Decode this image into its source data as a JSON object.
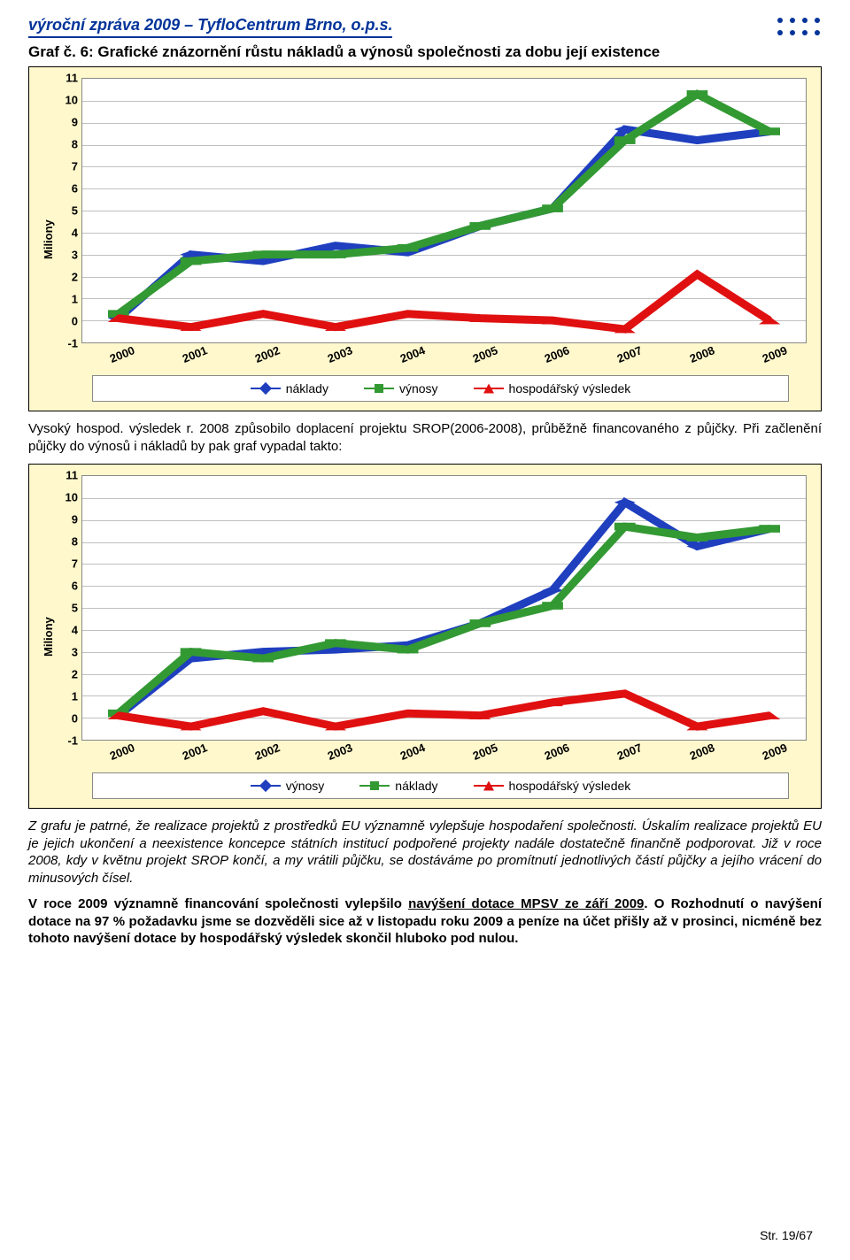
{
  "header": {
    "title": "výroční zpráva 2009 – TyfloCentrum Brno, o.p.s.",
    "dot_color": "#003399"
  },
  "chart1": {
    "title": "Graf č. 6: Grafické znázornění růstu nákladů a výnosů společnosti za dobu její existence",
    "type": "line",
    "background_color": "#fff8cc",
    "plot_bg": "#ffffff",
    "grid_color": "#c0c0c0",
    "border_color": "#888888",
    "ylabel": "Miliony",
    "label_fontsize": 13,
    "xtick_fontsize": 13,
    "xtick_rotation": -22,
    "ylim": [
      -1,
      11
    ],
    "ytick_step": 1,
    "categories": [
      "2000",
      "2001",
      "2002",
      "2003",
      "2004",
      "2005",
      "2006",
      "2007",
      "2008",
      "2009"
    ],
    "series": [
      {
        "name": "náklady",
        "color": "#1f3fbf",
        "marker": "diamond",
        "line_width": 3,
        "values": [
          0.1,
          3.0,
          2.7,
          3.4,
          3.1,
          4.3,
          5.1,
          8.7,
          8.2,
          8.6
        ]
      },
      {
        "name": "výnosy",
        "color": "#339933",
        "marker": "square",
        "line_width": 3,
        "values": [
          0.3,
          2.7,
          3.0,
          3.0,
          3.3,
          4.3,
          5.1,
          8.2,
          10.3,
          8.6
        ]
      },
      {
        "name": "hospodářský výsledek",
        "color": "#e01010",
        "marker": "triangle",
        "line_width": 3,
        "values": [
          0.1,
          -0.3,
          0.3,
          -0.3,
          0.3,
          0.1,
          0.0,
          -0.4,
          2.1,
          0.0
        ]
      }
    ],
    "legend_position": "bottom"
  },
  "para1": "Vysoký hospod. výsledek r. 2008 způsobilo doplacení projektu SROP(2006-2008), průběžně financovaného z půjčky. Při začlenění půjčky do výnosů i nákladů by pak graf vypadal takto:",
  "chart2": {
    "type": "line",
    "background_color": "#fff8cc",
    "plot_bg": "#ffffff",
    "grid_color": "#c0c0c0",
    "border_color": "#888888",
    "ylabel": "Miliony",
    "label_fontsize": 13,
    "xtick_fontsize": 13,
    "xtick_rotation": -22,
    "ylim": [
      -1,
      11
    ],
    "ytick_step": 1,
    "categories": [
      "2000",
      "2001",
      "2002",
      "2003",
      "2004",
      "2005",
      "2006",
      "2007",
      "2008",
      "2009"
    ],
    "series": [
      {
        "name": "výnosy",
        "color": "#1f3fbf",
        "marker": "diamond",
        "line_width": 3,
        "values": [
          0.1,
          2.7,
          3.0,
          3.1,
          3.3,
          4.3,
          5.8,
          9.8,
          7.8,
          8.6
        ]
      },
      {
        "name": "náklady",
        "color": "#339933",
        "marker": "square",
        "line_width": 3,
        "values": [
          0.2,
          3.0,
          2.7,
          3.4,
          3.1,
          4.3,
          5.1,
          8.7,
          8.2,
          8.6
        ]
      },
      {
        "name": "hospodářský výsledek",
        "color": "#e01010",
        "marker": "triangle",
        "line_width": 3,
        "values": [
          0.1,
          -0.4,
          0.3,
          -0.4,
          0.2,
          0.1,
          0.7,
          1.1,
          -0.4,
          0.1
        ]
      }
    ],
    "legend_position": "bottom"
  },
  "para2_html": "Z grafu je patrné, že realizace projektů z prostředků EU významně vylepšuje hospodaření společnosti. Úskalím realizace projektů EU je jejich ukončení a neexistence koncepce státních institucí podpořené projekty nadále dostatečně finančně podporovat. Již v roce 2008, kdy v květnu projekt SROP končí, a my vrátili půjčku, se dostáváme po promítnutí jednotlivých částí půjčky a jejího vrácení do minusových čísel.",
  "para3_prefix": "V roce 2009 významně financování společnosti vylepšilo ",
  "para3_underline": "navýšení dotace MPSV ze září 2009",
  "para3_suffix": ". O Rozhodnutí o navýšení dotace na 97 % požadavku jsme se dozvěděli sice až v listopadu roku 2009 a peníze na účet přišly až v prosinci, nicméně bez tohoto navýšení dotace by hospodářský výsledek skončil hluboko pod nulou.",
  "footer": "Str. 19/67"
}
